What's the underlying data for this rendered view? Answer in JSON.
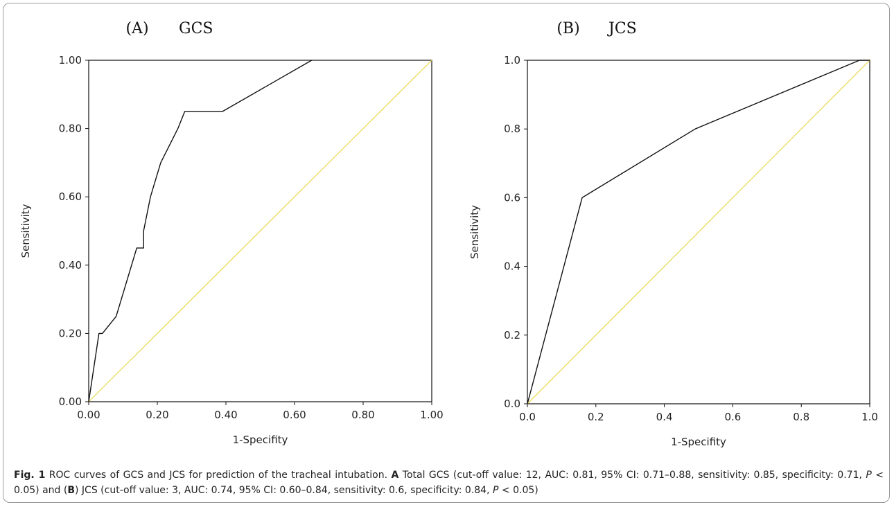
{
  "chart_data": [
    {
      "type": "line",
      "panel_label": "(A)",
      "title": "GCS",
      "xlabel": "1-Specifity",
      "ylabel": "Sensitivity",
      "xlim": [
        0,
        1
      ],
      "ylim": [
        0,
        1
      ],
      "x_ticks": [
        "0.00",
        "0.20",
        "0.40",
        "0.60",
        "0.80",
        "1.00"
      ],
      "y_ticks": [
        "0.00",
        "0.20",
        "0.40",
        "0.60",
        "0.80",
        "1.00"
      ],
      "grid": false,
      "series": [
        {
          "color": "#111111",
          "x": [
            0.0,
            0.03,
            0.04,
            0.08,
            0.14,
            0.16,
            0.16,
            0.18,
            0.21,
            0.26,
            0.28,
            0.39,
            0.65
          ],
          "y": [
            0.0,
            0.2,
            0.2,
            0.25,
            0.45,
            0.45,
            0.5,
            0.6,
            0.7,
            0.8,
            0.85,
            0.85,
            1.0
          ]
        },
        {
          "color": "#e8d84c",
          "x": [
            0,
            1
          ],
          "y": [
            0,
            1
          ]
        }
      ]
    },
    {
      "type": "line",
      "panel_label": "(B)",
      "title": "JCS",
      "xlabel": "1-Specifity",
      "ylabel": "Sensitivity",
      "xlim": [
        0,
        1
      ],
      "ylim": [
        0,
        1
      ],
      "x_ticks": [
        "0.0",
        "0.2",
        "0.4",
        "0.6",
        "0.8",
        "1.0"
      ],
      "y_ticks": [
        "0.0",
        "0.2",
        "0.4",
        "0.6",
        "0.8",
        "1.0"
      ],
      "grid": false,
      "series": [
        {
          "color": "#111111",
          "x": [
            0.0,
            0.16,
            0.49,
            0.97,
            1.0
          ],
          "y": [
            0.0,
            0.6,
            0.8,
            1.0,
            1.0
          ]
        },
        {
          "color": "#e8d84c",
          "x": [
            0,
            1
          ],
          "y": [
            0,
            1
          ]
        }
      ]
    }
  ],
  "caption": {
    "fig_label": "Fig. 1",
    "intro": " ROC curves of GCS and JCS for prediction of the tracheal intubation. ",
    "a_label": "A",
    "a_text": " Total GCS (cut-off value: 12, AUC: 0.81, 95% CI: 0.71–0.88, sensitivity: 0.85, specificity: 0.71, ",
    "p_symbol": "P",
    "a_p_text": " < 0.05) and (",
    "b_label": "B",
    "b_text": ") JCS (cut-off value: 3, AUC: 0.74, 95% CI: 0.60–0.84, sensitivity: 0.6, specificity: 0.84, ",
    "b_p_text": " < 0.05)"
  }
}
